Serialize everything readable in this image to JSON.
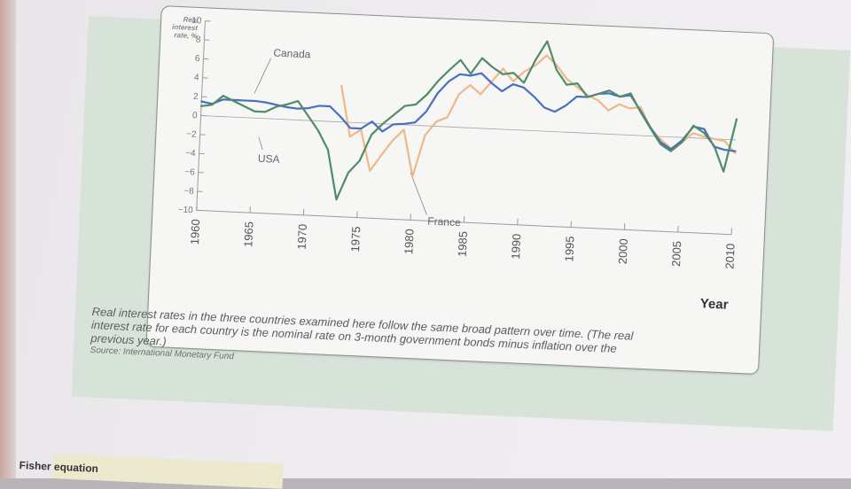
{
  "chart_data": {
    "type": "line",
    "title": "",
    "ylabel": "Real interest rate, %",
    "xlabel": "Year",
    "ylim": [
      -10,
      10
    ],
    "xlim": [
      1960,
      2010
    ],
    "y_ticks": [
      10,
      8,
      6,
      4,
      2,
      0,
      -2,
      -4,
      -6,
      -8,
      -10
    ],
    "x_ticks": [
      1960,
      1965,
      1970,
      1975,
      1980,
      1985,
      1990,
      1995,
      2000,
      2005,
      2010
    ],
    "grid": false,
    "legend": "none (series labelled directly on the lines)",
    "series": [
      {
        "name": "USA",
        "color": "#4a6fc2",
        "x": [
          1960,
          1961,
          1962,
          1963,
          1964,
          1965,
          1966,
          1967,
          1968,
          1969,
          1970,
          1971,
          1972,
          1973,
          1974,
          1975,
          1976,
          1977,
          1978,
          1979,
          1980,
          1981,
          1982,
          1983,
          1984,
          1985,
          1986,
          1987,
          1988,
          1989,
          1990,
          1991,
          1992,
          1993,
          1994,
          1995,
          1996,
          1997,
          1998,
          1999,
          2000,
          2001,
          2002,
          2003,
          2004,
          2005,
          2006,
          2007,
          2008,
          2009,
          2010
        ],
        "y": [
          1.5,
          1.3,
          1.8,
          1.8,
          1.8,
          1.8,
          1.7,
          1.5,
          1.3,
          1.2,
          1.3,
          1.6,
          1.6,
          0.6,
          -0.6,
          -0.6,
          0.2,
          -0.8,
          0.0,
          0.1,
          0.3,
          1.5,
          3.5,
          4.8,
          5.6,
          5.5,
          5.8,
          4.8,
          4.0,
          4.8,
          4.5,
          3.6,
          2.5,
          2.1,
          2.8,
          3.8,
          3.8,
          4.2,
          4.3,
          4.0,
          4.2,
          2.6,
          0.9,
          -0.6,
          -1.3,
          -0.3,
          1.2,
          1.0,
          -0.8,
          -1.1,
          -1.2
        ]
      },
      {
        "name": "Canada",
        "color": "#4f8c69",
        "x": [
          1960,
          1961,
          1962,
          1963,
          1964,
          1965,
          1966,
          1967,
          1968,
          1969,
          1970,
          1971,
          1972,
          1973,
          1974,
          1975,
          1976,
          1977,
          1978,
          1979,
          1980,
          1981,
          1982,
          1983,
          1984,
          1985,
          1986,
          1987,
          1988,
          1989,
          1990,
          1991,
          1992,
          1993,
          1994,
          1995,
          1996,
          1997,
          1998,
          1999,
          2000,
          2001,
          2002,
          2003,
          2004,
          2005,
          2006,
          2007,
          2008,
          2009,
          2010
        ],
        "y": [
          1.0,
          1.2,
          2.2,
          1.7,
          1.2,
          0.7,
          0.7,
          1.3,
          1.6,
          2.0,
          0.5,
          -1.0,
          -3.0,
          -8.2,
          -5.3,
          -4.0,
          -1.2,
          0.0,
          1.0,
          2.0,
          2.2,
          3.3,
          4.8,
          6.0,
          7.1,
          5.7,
          7.4,
          6.5,
          5.8,
          6.0,
          5.0,
          7.5,
          9.5,
          6.5,
          5.0,
          5.2,
          3.8,
          4.2,
          4.6,
          4.0,
          4.4,
          2.5,
          0.8,
          -0.8,
          -1.5,
          -0.5,
          1.3,
          0.6,
          -0.7,
          -3.4,
          2.2
        ]
      },
      {
        "name": "France",
        "color": "#efb78a",
        "x": [
          1960,
          1961,
          1962,
          1963,
          1964,
          1965,
          1966,
          1967,
          1968,
          1969,
          1970,
          1971,
          1972,
          1973,
          1974,
          1975,
          1976,
          1977,
          1978,
          1979,
          1980,
          1981,
          1982,
          1983,
          1984,
          1985,
          1986,
          1987,
          1988,
          1989,
          1990,
          1991,
          1992,
          1993,
          1994,
          1995,
          1996,
          1997,
          1998,
          1999,
          2000,
          2001,
          2002,
          2003,
          2004,
          2005,
          2006,
          2007,
          2008,
          2009,
          2010
        ],
        "y": [
          null,
          null,
          null,
          null,
          null,
          null,
          null,
          null,
          null,
          null,
          null,
          null,
          null,
          3.8,
          -1.5,
          -0.7,
          -5.0,
          -3.3,
          -1.7,
          -0.5,
          -5.4,
          -1.0,
          0.5,
          1.0,
          3.5,
          4.5,
          3.6,
          5.0,
          6.4,
          5.1,
          6.2,
          6.9,
          8.0,
          7.0,
          5.6,
          4.8,
          4.0,
          3.5,
          2.5,
          3.2,
          2.8,
          3.0,
          0.8,
          -0.3,
          -1.2,
          -0.5,
          0.5,
          0.2,
          0.0,
          -0.2,
          -1.4
        ]
      }
    ],
    "annotations": [
      "Canada",
      "USA",
      "France"
    ]
  },
  "caption": {
    "text": "Real interest rates in the three countries examined here follow the same broad pattern over time. (The real interest rate for each country is the nominal rate on 3-month government bonds minus inflation over the previous year.)",
    "source": "Source: International Monetary Fund"
  },
  "footer": {
    "term": "Fisher equation"
  }
}
